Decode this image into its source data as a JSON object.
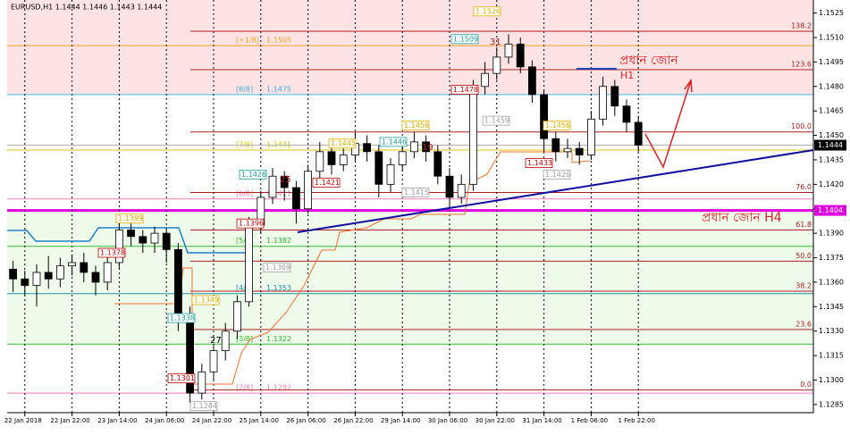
{
  "chart_data": {
    "type": "candlestick",
    "title": "EURUSD,H1  1.1444 1.1446 1.1443 1.1444",
    "categories": [
      null,
      "22 Jan 2018",
      null,
      null,
      null,
      "22 Jan 22:00",
      null,
      null,
      null,
      "23 Jan 14:00",
      null,
      null,
      null,
      "24 Jan 06:00",
      null,
      null,
      null,
      "24 Jan 22:00",
      null,
      null,
      null,
      "25 Jan 14:00",
      null,
      null,
      null,
      "26 Jan 06:00",
      null,
      null,
      null,
      "26 Jan 22:00",
      null,
      null,
      null,
      "29 Jan 14:00",
      null,
      null,
      null,
      "30 Jan 06:00",
      null,
      null,
      null,
      "30 Jan 22:00",
      null,
      null,
      null,
      "31 Jan 14:00",
      null,
      null,
      null,
      "1 Feb 06:00",
      null,
      null,
      null,
      "1 Feb 22:00"
    ],
    "open": [
      1.1368,
      1.1362,
      1.1358,
      1.1366,
      1.1362,
      1.137,
      1.1372,
      1.1366,
      1.136,
      1.1372,
      1.1392,
      1.1388,
      1.1384,
      1.139,
      1.138,
      1.134,
      1.1292,
      1.1305,
      1.1318,
      1.133,
      1.1348,
      1.1395,
      1.1412,
      1.1425,
      1.1418,
      1.1405,
      1.1428,
      1.144,
      1.1432,
      1.1438,
      1.1445,
      1.144,
      1.142,
      1.1432,
      1.144,
      1.1446,
      1.144,
      1.1425,
      1.1412,
      1.142,
      1.148,
      1.1488,
      1.1498,
      1.1506,
      1.1492,
      1.1475,
      1.1448,
      1.144,
      1.1442,
      1.1438,
      1.146,
      1.148,
      1.1468,
      1.1458
    ],
    "high": [
      1.1373,
      1.1367,
      1.1371,
      1.1376,
      1.1375,
      1.1377,
      1.1378,
      1.137,
      1.1376,
      1.1398,
      1.1396,
      1.1392,
      1.1394,
      1.1393,
      1.1384,
      1.1345,
      1.131,
      1.1322,
      1.1335,
      1.1352,
      1.14,
      1.1416,
      1.143,
      1.1428,
      1.1422,
      1.1432,
      1.1446,
      1.1444,
      1.1442,
      1.1452,
      1.145,
      1.1444,
      1.1436,
      1.1445,
      1.1452,
      1.145,
      1.1444,
      1.143,
      1.1426,
      1.1484,
      1.1495,
      1.1504,
      1.1512,
      1.151,
      1.1496,
      1.1478,
      1.1452,
      1.1448,
      1.1446,
      1.1465,
      1.1486,
      1.1484,
      1.1472,
      1.1462
    ],
    "low": [
      1.1354,
      1.1352,
      1.1345,
      1.1356,
      1.1357,
      1.1364,
      1.136,
      1.1352,
      1.1355,
      1.1368,
      1.1382,
      1.1378,
      1.1378,
      1.1372,
      1.133,
      1.1286,
      1.1288,
      1.13,
      1.1312,
      1.1325,
      1.1345,
      1.139,
      1.1408,
      1.141,
      1.1396,
      1.1402,
      1.1424,
      1.1426,
      1.1428,
      1.1434,
      1.1434,
      1.1412,
      1.1415,
      1.1428,
      1.1436,
      1.1434,
      1.142,
      1.1405,
      1.1408,
      1.1416,
      1.1475,
      1.1484,
      1.1494,
      1.1488,
      1.147,
      1.144,
      1.1434,
      1.1436,
      1.1432,
      1.1435,
      1.1456,
      1.1462,
      1.1452,
      1.144
    ],
    "close": [
      1.1362,
      1.1358,
      1.1366,
      1.1362,
      1.137,
      1.1372,
      1.1366,
      1.136,
      1.1372,
      1.1392,
      1.1388,
      1.1384,
      1.139,
      1.138,
      1.134,
      1.1292,
      1.1305,
      1.1318,
      1.133,
      1.1348,
      1.1395,
      1.1412,
      1.1425,
      1.1418,
      1.1405,
      1.1428,
      1.144,
      1.1432,
      1.1438,
      1.1445,
      1.144,
      1.142,
      1.1432,
      1.144,
      1.1446,
      1.144,
      1.1425,
      1.1412,
      1.142,
      1.148,
      1.1488,
      1.1498,
      1.1506,
      1.1492,
      1.1475,
      1.1448,
      1.144,
      1.1442,
      1.1438,
      1.146,
      1.148,
      1.1468,
      1.1458,
      1.1444
    ],
    "up_color": "#ffffff",
    "down_color": "#000000",
    "ylim": [
      1.128,
      1.1533
    ],
    "yticks": [
      1.1525,
      {
        "value": 1.151,
        "label": "1.1510"
      },
      1.1495,
      {
        "value": 1.148,
        "label": "1.1480"
      },
      1.1465,
      {
        "value": 1.145,
        "label": "1.1450"
      },
      1.1435,
      {
        "value": 1.142,
        "label": "1.1420"
      },
      1.1405,
      {
        "value": 1.139,
        "label": "1.1390"
      },
      1.1375,
      {
        "value": 1.136,
        "label": "1.1360"
      },
      1.1345,
      {
        "value": 1.133,
        "label": "1.1330"
      },
      1.1315,
      {
        "value": 1.13,
        "label": "1.1300"
      },
      1.1285
    ],
    "grid": true,
    "current_price": 1.1444,
    "zone_price": 1.1404,
    "zone_color": "#e000e0",
    "fib_color": "#b02020",
    "fib_levels": [
      {
        "label": "138.2",
        "value": 1.15138
      },
      {
        "label": "123.6",
        "value": 1.14903
      },
      {
        "label": "100.0",
        "value": 1.14521
      },
      {
        "label": "76.0",
        "value": 1.1415
      },
      {
        "label": "61.8",
        "value": 1.1392
      },
      {
        "label": "50.0",
        "value": 1.13729
      },
      {
        "label": "38.2",
        "value": 1.13545
      },
      {
        "label": "23.6",
        "value": 1.1331
      },
      {
        "label": "0.0",
        "value": 1.12939
      }
    ],
    "murrey_levels": [
      {
        "label": "[+1/8]",
        "price": 1.1505,
        "color": "#f0a020"
      },
      {
        "label": "[8/8]",
        "price": 1.1475,
        "color": "#40b0e0"
      },
      {
        "label": "[7/8]",
        "price": 1.1441,
        "color": "#e0c000"
      },
      {
        "label": "[6/8]",
        "price": 1.1411,
        "color": "#f080c0"
      },
      {
        "label": "[5/8]",
        "price": 1.1382,
        "color": "#30c030"
      },
      {
        "label": "[4/8]",
        "price": 1.1353,
        "color": "#2090b0"
      },
      {
        "label": "[3/8]",
        "price": 1.1322,
        "color": "#30c030"
      },
      {
        "label": "[2/8]",
        "price": 1.1292,
        "color": "#f080c0"
      }
    ],
    "price_tags": [
      {
        "value": 1.1526,
        "color": "#e0b000"
      },
      {
        "value": 1.1509,
        "color": "#20a0a0"
      },
      {
        "value": 1.1478,
        "color": "#c00000"
      },
      {
        "value": 1.1459,
        "color": "#a0a0a0"
      },
      {
        "value": 1.1456,
        "color": "#e0b000"
      },
      {
        "value": 1.1456,
        "color": "#e0b000"
      },
      {
        "value": 1.1446,
        "color": "#20a0a0"
      },
      {
        "value": 1.1445,
        "color": "#e0b000"
      },
      {
        "value": 1.1433,
        "color": "#c00000"
      },
      {
        "value": 1.1426,
        "color": "#20a0a0"
      },
      {
        "value": 1.1426,
        "color": "#a0a0a0"
      },
      {
        "value": 1.1421,
        "color": "#c00000"
      },
      {
        "value": 1.1415,
        "color": "#a0a0a0"
      },
      {
        "value": 1.1399,
        "color": "#e0b000"
      },
      {
        "value": 1.1396,
        "color": "#c00000"
      },
      {
        "value": 1.1378,
        "color": "#c00000"
      },
      {
        "value": 1.1369,
        "color": "#a0a0a0"
      },
      {
        "value": 1.1349,
        "color": "#e0b000"
      },
      {
        "value": 1.1338,
        "color": "#20a0a0"
      },
      {
        "value": 1.1301,
        "color": "#c00000"
      },
      {
        "value": 1.1284,
        "color": "#a0a0a0"
      }
    ],
    "swing_counts": [
      31,
      25,
      19,
      27
    ],
    "zone_h1_label": "প্রধান জোন",
    "h1_label": "H1",
    "zone_h4_label": "প্রধান জোন H4"
  }
}
